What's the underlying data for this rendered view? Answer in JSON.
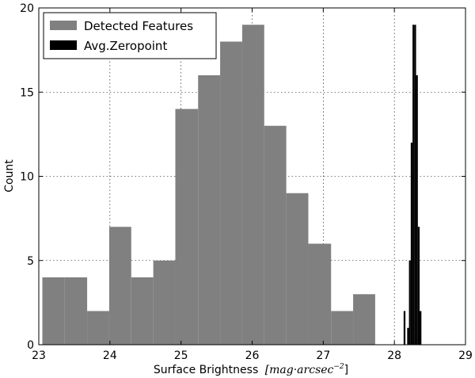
{
  "chart_data": {
    "type": "bar",
    "xlabel": "Surface Brightness",
    "xlabel_unit": "[mag·arcsec",
    "xlabel_unit_exp": "−2",
    "xlabel_unit_close": "]",
    "ylabel": "Count",
    "xlim": [
      23,
      29
    ],
    "ylim": [
      0,
      20
    ],
    "xticks": [
      23,
      24,
      25,
      26,
      27,
      28,
      29
    ],
    "yticks": [
      0,
      5,
      10,
      15,
      20
    ],
    "grid": true,
    "legend_position": "top-left",
    "series": [
      {
        "name": "Detected Features",
        "color": "#808080",
        "bin_edges": [
          23.05,
          23.36,
          23.68,
          23.99,
          24.3,
          24.61,
          24.92,
          25.24,
          25.55,
          25.86,
          26.17,
          26.48,
          26.79,
          27.11,
          27.42,
          27.73
        ],
        "counts": [
          4,
          4,
          2,
          7,
          4,
          5,
          14,
          16,
          18,
          19,
          13,
          9,
          6,
          2,
          3
        ]
      },
      {
        "name": "Avg.Zeropoint",
        "color": "#000000",
        "bin_edges": [
          28.13,
          28.155,
          28.18,
          28.205,
          28.23,
          28.255,
          28.28,
          28.305,
          28.33,
          28.355,
          28.38
        ],
        "counts": [
          2,
          0,
          1,
          5,
          12,
          19,
          19,
          16,
          7,
          2
        ]
      }
    ]
  }
}
